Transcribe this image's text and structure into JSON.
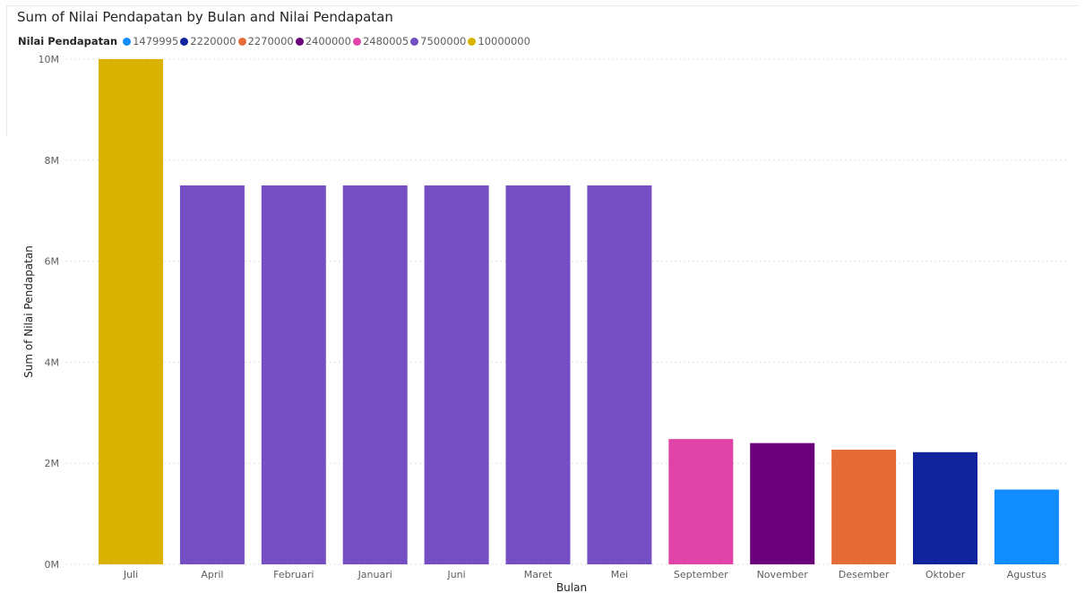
{
  "colors": {
    "title": "#252423",
    "tick": "#605e5c",
    "grid": "#e1dfdd"
  },
  "chart_data": {
    "type": "bar",
    "title": "Sum of Nilai Pendapatan by Bulan and Nilai Pendapatan",
    "xlabel": "Bulan",
    "ylabel": "Sum of Nilai Pendapatan",
    "ylim": [
      0,
      10000000
    ],
    "y_ticks": [
      {
        "value": 0,
        "label": "0M"
      },
      {
        "value": 2000000,
        "label": "2M"
      },
      {
        "value": 4000000,
        "label": "4M"
      },
      {
        "value": 6000000,
        "label": "6M"
      },
      {
        "value": 8000000,
        "label": "8M"
      },
      {
        "value": 10000000,
        "label": "10M"
      }
    ],
    "grid": true,
    "legend": {
      "title": "Nilai Pendapatan",
      "placement": "top-left",
      "items": [
        {
          "label": "1479995",
          "color": "#118dff"
        },
        {
          "label": "2220000",
          "color": "#12239e"
        },
        {
          "label": "2270000",
          "color": "#e66c37"
        },
        {
          "label": "2400000",
          "color": "#6b007b"
        },
        {
          "label": "2480005",
          "color": "#e044a7"
        },
        {
          "label": "7500000",
          "color": "#744ec2"
        },
        {
          "label": "10000000",
          "color": "#d9b300"
        }
      ]
    },
    "categories": [
      "Juli",
      "April",
      "Februari",
      "Januari",
      "Juni",
      "Maret",
      "Mei",
      "September",
      "November",
      "Desember",
      "Oktober",
      "Agustus"
    ],
    "values": [
      10000000,
      7500000,
      7500000,
      7500000,
      7500000,
      7500000,
      7500000,
      2480005,
      2400000,
      2270000,
      2220000,
      1479995
    ],
    "bar_colors": [
      "#d9b300",
      "#744ec2",
      "#744ec2",
      "#744ec2",
      "#744ec2",
      "#744ec2",
      "#744ec2",
      "#e044a7",
      "#6b007b",
      "#e66c37",
      "#12239e",
      "#118dff"
    ]
  }
}
